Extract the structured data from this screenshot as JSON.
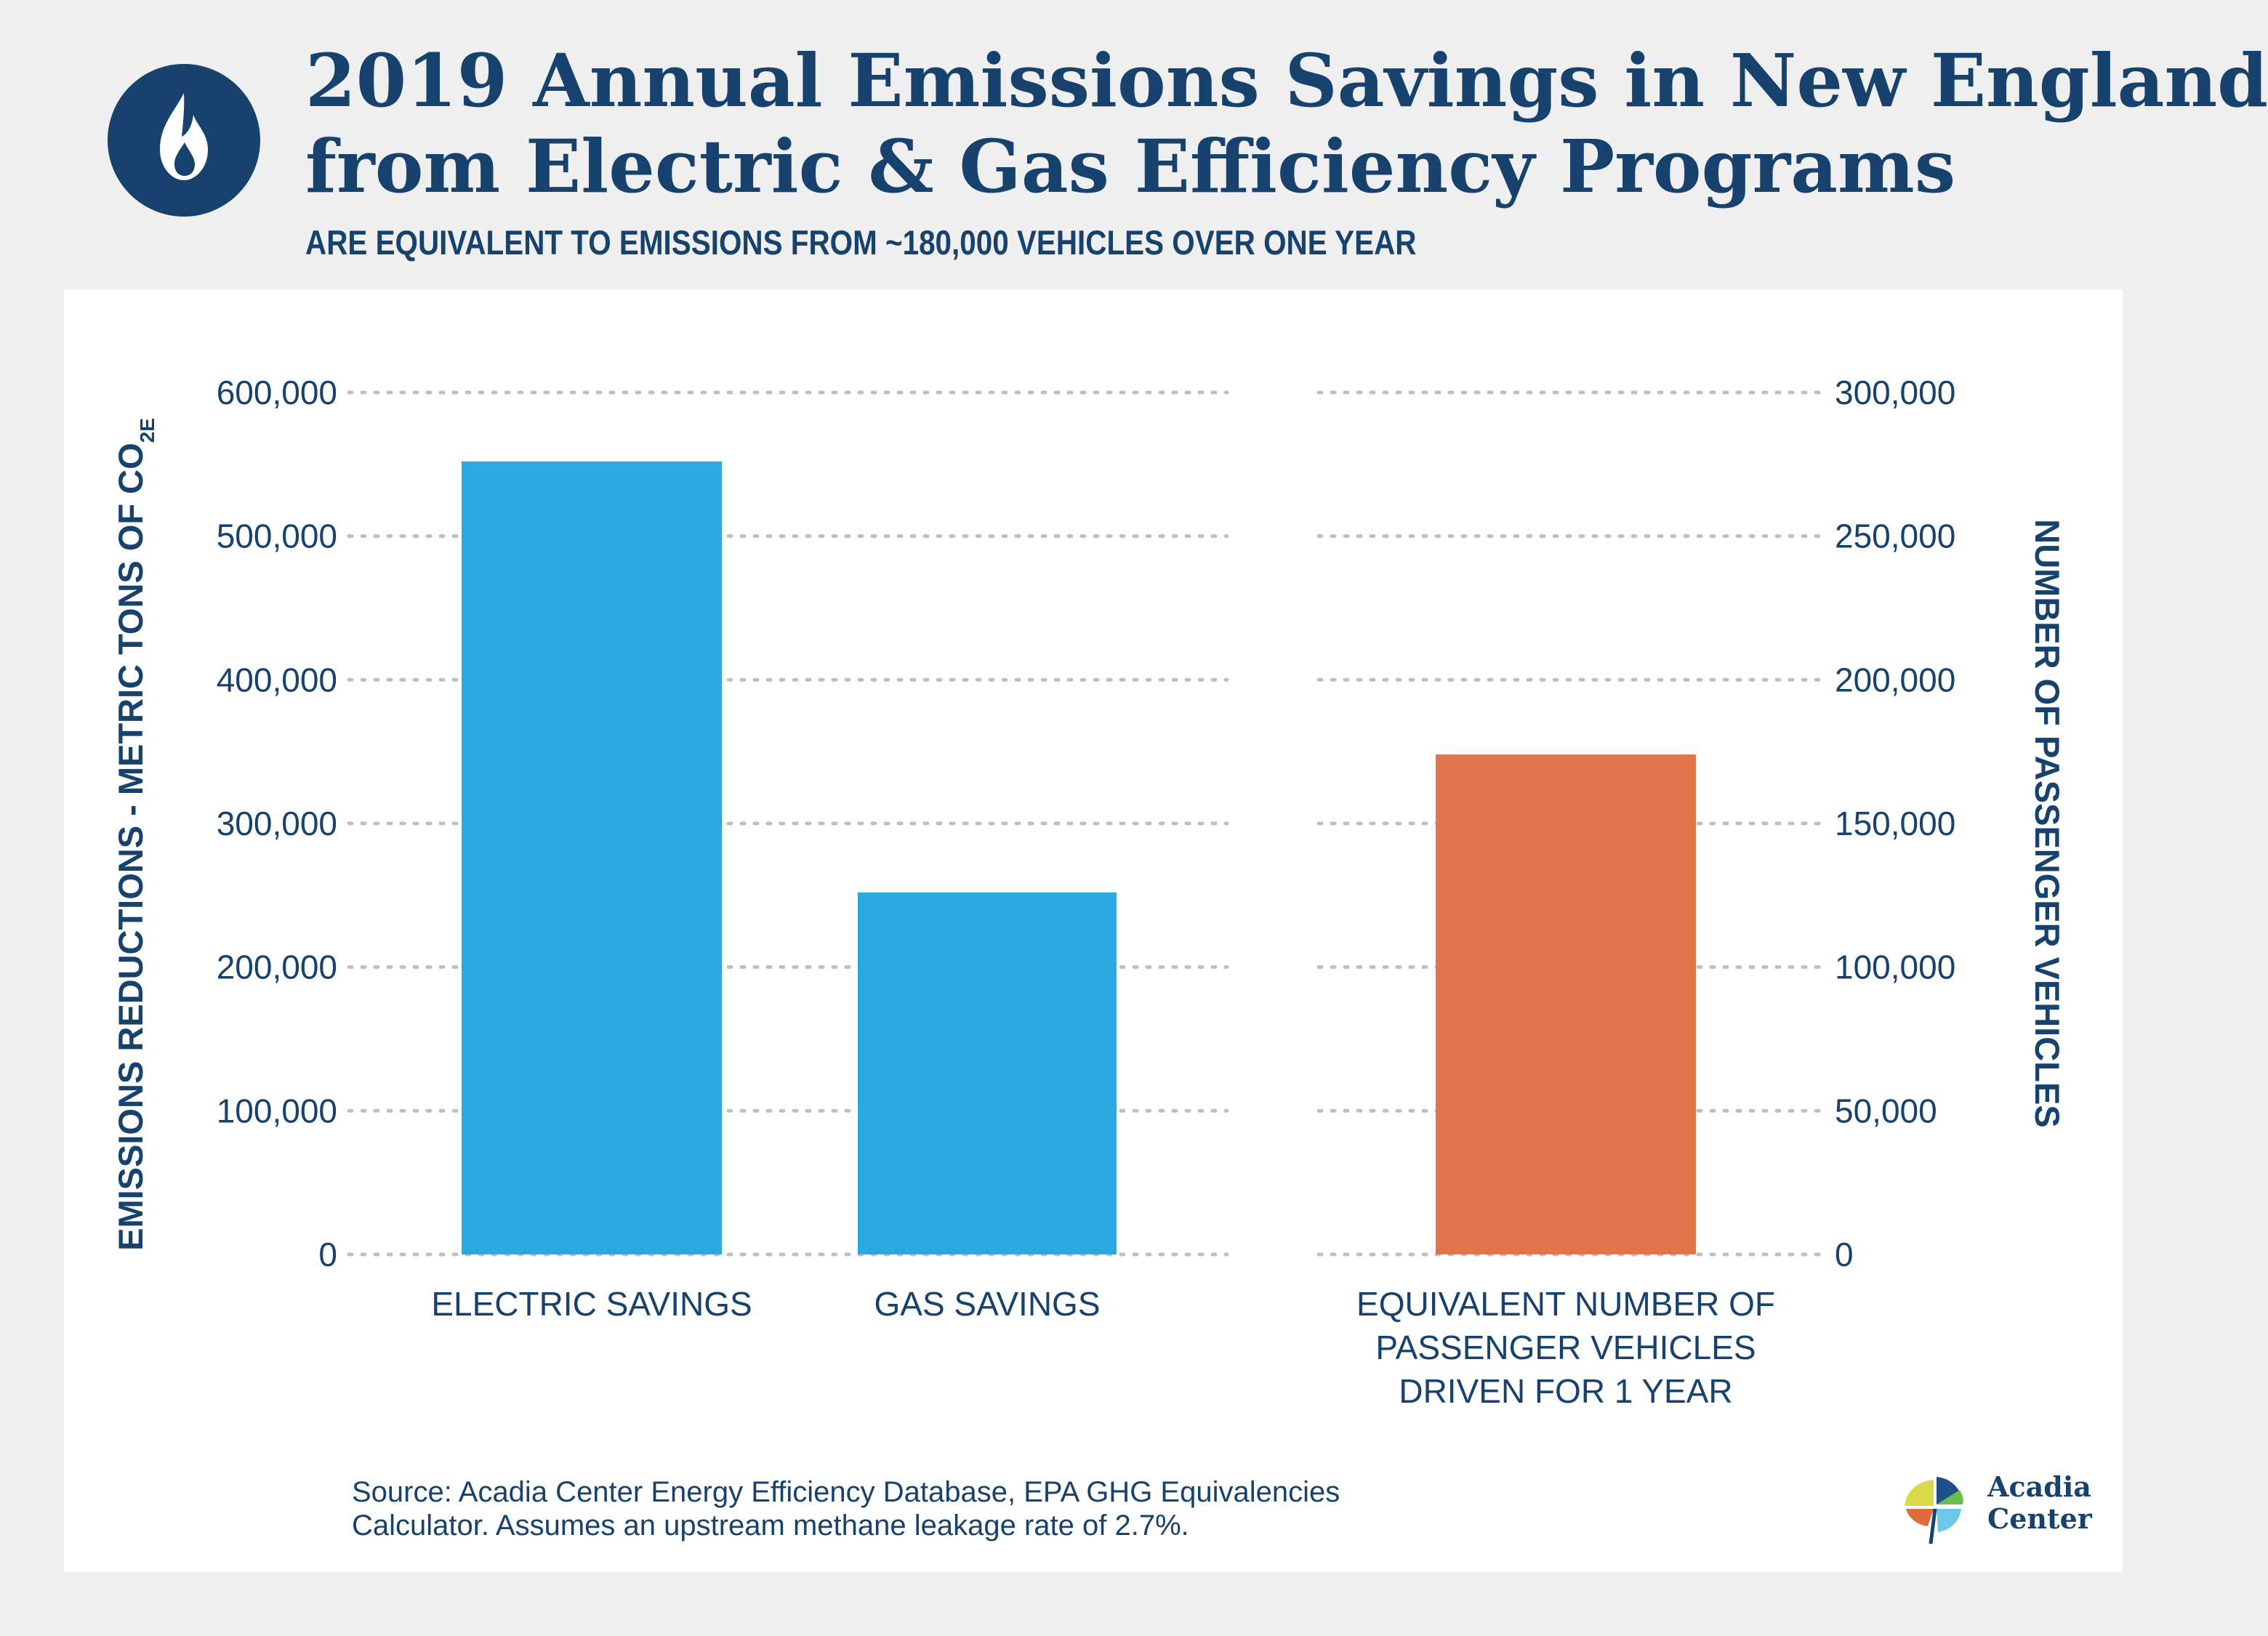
{
  "header": {
    "title_line1": "2019 Annual Emissions Savings in New England",
    "title_line2": "from Electric & Gas Efficiency Programs",
    "subtitle": "ARE EQUIVALENT TO EMISSIONS FROM ~180,000 VEHICLES OVER ONE YEAR",
    "icon": "flame-icon"
  },
  "colors": {
    "navy": "#17426e",
    "emissions_bar": "#29a9df",
    "vehicles_bar": "#e2744b",
    "gridline": "#bfbfbf",
    "background": "#efefef"
  },
  "chart_data": {
    "type": "bar",
    "ylabel_left_text": "EMISSIONS REDUCTIONS - METRIC TONS OF CO",
    "ylabel_left_subscript": "2E",
    "ylabel_right": "NUMBER OF PASSENGER VEHICLES",
    "ylim_left": [
      0,
      600000
    ],
    "ylim_right": [
      0,
      300000
    ],
    "yticks_left": [
      "0",
      "100,000",
      "200,000",
      "300,000",
      "400,000",
      "500,000",
      "600,000"
    ],
    "yticks_right": [
      "0",
      "50,000",
      "100,000",
      "150,000",
      "200,000",
      "250,000",
      "300,000"
    ],
    "grid": "dotted horizontal",
    "legend": "none",
    "bars": [
      {
        "category": [
          "ELECTRIC SAVINGS"
        ],
        "value": 552000,
        "axis": "left",
        "color": "#29a9df"
      },
      {
        "category": [
          "GAS SAVINGS"
        ],
        "value": 252000,
        "axis": "left",
        "color": "#29a9df"
      },
      {
        "category": [
          "EQUIVALENT NUMBER OF",
          "PASSENGER VEHICLES",
          "DRIVEN FOR 1 YEAR"
        ],
        "value": 174000,
        "axis": "right",
        "color": "#e2744b"
      }
    ]
  },
  "source": {
    "line1": "Source: Acadia Center Energy Efficiency Database, EPA GHG Equivalencies",
    "line2": "Calculator. Assumes an upstream methane leakage rate of 2.7%."
  },
  "logo": {
    "line1": "Acadia",
    "line2": "Center",
    "icon": "acadia-leaf-icon"
  }
}
